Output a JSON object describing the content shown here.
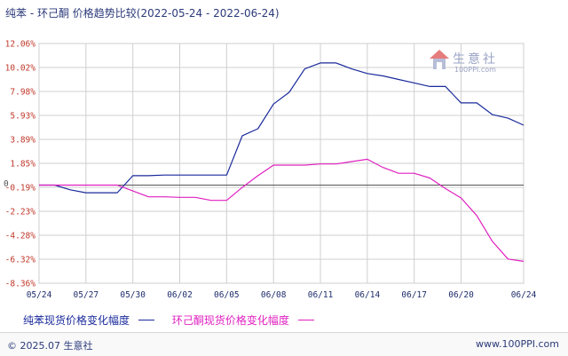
{
  "title": "纯苯 - 环己酮 价格趋势比较(2022-05-24 - 2022-06-24)",
  "watermark": {
    "name": "生意社",
    "url": "100PPI.com"
  },
  "footer": {
    "copyright": "© 2025.07 生意社",
    "site": "www.100PPI.com"
  },
  "colors": {
    "series1": "#1a2a9c",
    "series2": "#e020c0",
    "grid": "#cfcfcf",
    "zero": "#555555"
  },
  "chart_data": {
    "type": "line",
    "ylim": [
      -8.36,
      12.06
    ],
    "yticks": [
      "12.06%",
      "10.02%",
      "7.98%",
      "5.93%",
      "3.89%",
      "1.85%",
      "-0.19%",
      "-2.23%",
      "-4.28%",
      "-6.32%",
      "-8.36%"
    ],
    "ytick_values": [
      12.06,
      10.02,
      7.98,
      5.93,
      3.89,
      1.85,
      -0.19,
      -2.23,
      -4.28,
      -6.32,
      -8.36
    ],
    "zero_label": "0",
    "xlim": [
      0,
      31
    ],
    "xticks": [
      "05/24",
      "05/27",
      "05/30",
      "06/02",
      "06/05",
      "06/08",
      "06/11",
      "06/14",
      "06/17",
      "06/20",
      "06/24"
    ],
    "xtick_values": [
      0,
      3,
      6,
      9,
      12,
      15,
      18,
      21,
      24,
      27,
      31
    ],
    "grid": true,
    "legend_position": "bottom",
    "series": [
      {
        "name": "纯苯现货价格变化幅度",
        "color": "#1a2a9c",
        "points": [
          [
            0,
            0
          ],
          [
            1,
            0
          ],
          [
            2,
            -0.4
          ],
          [
            3,
            -0.65
          ],
          [
            4,
            -0.65
          ],
          [
            5,
            -0.65
          ],
          [
            6,
            0.8
          ],
          [
            7,
            0.8
          ],
          [
            8,
            0.85
          ],
          [
            9,
            0.85
          ],
          [
            10,
            0.85
          ],
          [
            11,
            0.85
          ],
          [
            12,
            0.85
          ],
          [
            13,
            4.2
          ],
          [
            14,
            4.8
          ],
          [
            15,
            6.9
          ],
          [
            16,
            7.9
          ],
          [
            17,
            9.9
          ],
          [
            18,
            10.4
          ],
          [
            19,
            10.4
          ],
          [
            20,
            9.9
          ],
          [
            21,
            9.5
          ],
          [
            22,
            9.3
          ],
          [
            23,
            9.0
          ],
          [
            24,
            8.7
          ],
          [
            25,
            8.4
          ],
          [
            26,
            8.4
          ],
          [
            27,
            7.0
          ],
          [
            28,
            7.0
          ],
          [
            29,
            6.0
          ],
          [
            30,
            5.7
          ],
          [
            31,
            5.1
          ]
        ]
      },
      {
        "name": "环己酮现货价格变化幅度",
        "color": "#e020c0",
        "points": [
          [
            0,
            0
          ],
          [
            1,
            0
          ],
          [
            2,
            0
          ],
          [
            3,
            0
          ],
          [
            4,
            0
          ],
          [
            5,
            0
          ],
          [
            6,
            -0.5
          ],
          [
            7,
            -1.0
          ],
          [
            8,
            -1.0
          ],
          [
            9,
            -1.05
          ],
          [
            10,
            -1.05
          ],
          [
            11,
            -1.3
          ],
          [
            12,
            -1.3
          ],
          [
            13,
            -0.2
          ],
          [
            14,
            0.8
          ],
          [
            15,
            1.7
          ],
          [
            16,
            1.7
          ],
          [
            17,
            1.7
          ],
          [
            18,
            1.8
          ],
          [
            19,
            1.8
          ],
          [
            20,
            2.0
          ],
          [
            21,
            2.2
          ],
          [
            22,
            1.5
          ],
          [
            23,
            1.0
          ],
          [
            24,
            1.0
          ],
          [
            25,
            0.6
          ],
          [
            26,
            -0.3
          ],
          [
            27,
            -1.1
          ],
          [
            28,
            -2.6
          ],
          [
            29,
            -4.8
          ],
          [
            30,
            -6.3
          ],
          [
            31,
            -6.5
          ]
        ]
      }
    ]
  }
}
